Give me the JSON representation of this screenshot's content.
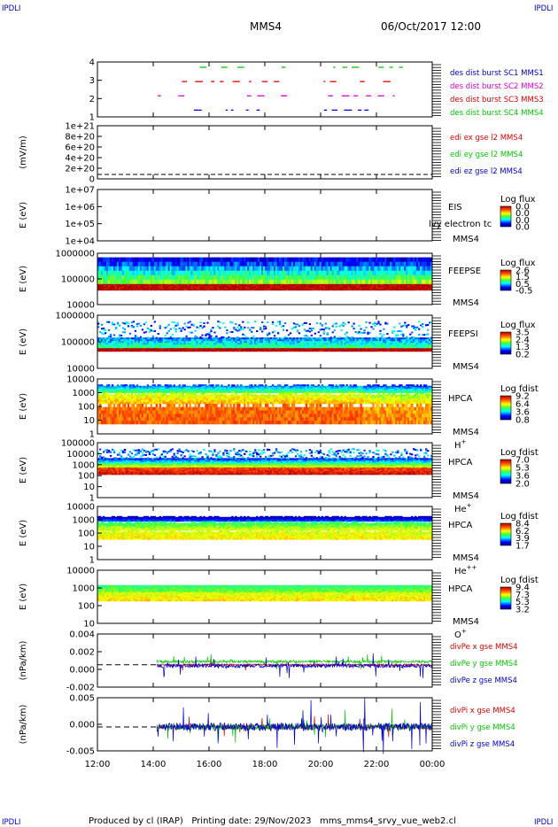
{
  "header": {
    "corner_tl": "IPDLI",
    "corner_tr": "IPDLI",
    "corner_bl": "IPDLI",
    "corner_br": "IPDLI",
    "spacecraft": "MMS4",
    "datetime": "06/Oct/2017 12:00"
  },
  "footer": {
    "text": "Produced by cl (IRAP)   Printing date: 29/Nov/2023   mms_mms4_srvy_vue_web2.cl"
  },
  "colors": {
    "blue": "#0000cc",
    "magenta": "#e000e0",
    "red": "#dd0000",
    "green": "#00cc00"
  },
  "chart_data": [
    {
      "id": "burst",
      "type": "scatter",
      "ylabel": "",
      "yticks": [
        "4",
        "3",
        "2",
        "1"
      ],
      "legend": [
        {
          "text": "des dist burst SC1 MMS1",
          "color": "blue"
        },
        {
          "text": "des dist burst SC2 MMS2",
          "color": "magenta"
        },
        {
          "text": "des dist burst SC3 MMS3",
          "color": "red"
        },
        {
          "text": "des dist burst SC4 MMS4",
          "color": "green"
        }
      ]
    },
    {
      "id": "edi",
      "type": "line",
      "ylabel": "(mV/m)",
      "yticks": [
        "1e+21",
        "8e+20",
        "6e+20",
        "4e+20",
        "2e+20",
        "0"
      ],
      "legend": [
        {
          "text": "edi ex gse l2 MMS4",
          "color": "red"
        },
        {
          "text": "edi ey gse l2 MMS4",
          "color": "green"
        },
        {
          "text": "edi ez gse l2 MMS4",
          "color": "blue"
        }
      ]
    },
    {
      "id": "eis",
      "type": "heatmap",
      "ylabel": "E (eV)",
      "yticks": [
        "1e+07",
        "1e+06",
        "1e+05",
        "1e+04"
      ],
      "instrument": "EIS",
      "spacecraft": "MMS4",
      "overlay": "lvy electron tc",
      "colorbar": {
        "title": "Log flux",
        "ticks": [
          "0.0",
          "0.0",
          "0.0",
          "0.0"
        ]
      }
    },
    {
      "id": "feepse",
      "type": "heatmap",
      "ylabel": "E (eV)",
      "yticks": [
        "1000000",
        "100000",
        "10000"
      ],
      "instrument": "FEEPSE",
      "spacecraft": "MMS4",
      "colorbar": {
        "title": "Log flux",
        "ticks": [
          "2.6",
          "1.5",
          "0.5",
          "-0.5"
        ]
      }
    },
    {
      "id": "feepsi",
      "type": "heatmap",
      "ylabel": "E (eV)",
      "yticks": [
        "1000000",
        "100000",
        "10000"
      ],
      "instrument": "FEEPSI",
      "spacecraft": "MMS4",
      "colorbar": {
        "title": "Log flux",
        "ticks": [
          "3.5",
          "2.4",
          "1.3",
          "0.2"
        ]
      }
    },
    {
      "id": "hpca_h",
      "type": "heatmap",
      "ylabel": "E (eV)",
      "yticks": [
        "10000",
        "1000",
        "100",
        "10",
        "1"
      ],
      "instrument": "HPCA",
      "spacecraft": "MMS4",
      "species": "H",
      "species_sup": "+",
      "colorbar": {
        "title": "Log fdist",
        "ticks": [
          "9.2",
          "6.4",
          "3.6",
          "0.8"
        ]
      }
    },
    {
      "id": "hpca_he",
      "type": "heatmap",
      "ylabel": "E (eV)",
      "yticks": [
        "100000",
        "10000",
        "1000",
        "100",
        "10",
        "1"
      ],
      "instrument": "HPCA",
      "spacecraft": "MMS4",
      "species": "He",
      "species_sup": "+",
      "colorbar": {
        "title": "Log fdist",
        "ticks": [
          "7.0",
          "5.3",
          "3.6",
          "2.0"
        ]
      }
    },
    {
      "id": "hpca_hepp",
      "type": "heatmap",
      "ylabel": "E (eV)",
      "yticks": [
        "10000",
        "1000",
        "100",
        "10",
        "1"
      ],
      "instrument": "HPCA",
      "spacecraft": "MMS4",
      "species": "He",
      "species_sup": "++",
      "colorbar": {
        "title": "Log fdist",
        "ticks": [
          "8.4",
          "6.2",
          "3.9",
          "1.7"
        ]
      }
    },
    {
      "id": "hpca_o",
      "type": "heatmap",
      "ylabel": "E (eV)",
      "yticks": [
        "10000",
        "1000",
        "100",
        "10"
      ],
      "instrument": "HPCA",
      "spacecraft": "MMS4",
      "species": "O",
      "species_sup": "+",
      "colorbar": {
        "title": "Log fdist",
        "ticks": [
          "9.4",
          "7.3",
          "5.3",
          "3.2"
        ]
      }
    },
    {
      "id": "divpe",
      "type": "line",
      "ylabel": "(nPa/km)",
      "yticks": [
        "0.004",
        "0.002",
        "0.000",
        "-0.002"
      ],
      "legend": [
        {
          "text": "divPe x gse MMS4",
          "color": "red"
        },
        {
          "text": "divPe y gse MMS4",
          "color": "green"
        },
        {
          "text": "divPe z gse MMS4",
          "color": "blue"
        }
      ]
    },
    {
      "id": "divpi",
      "type": "line",
      "ylabel": "(nPa/km)",
      "yticks": [
        "0.005",
        "0.000",
        "-0.005"
      ],
      "legend": [
        {
          "text": "divPi x gse MMS4",
          "color": "red"
        },
        {
          "text": "divPi y gse MMS4",
          "color": "green"
        },
        {
          "text": "divPi z gse MMS4",
          "color": "blue"
        }
      ]
    }
  ],
  "xaxis": {
    "ticks": [
      "12:00",
      "14:00",
      "16:00",
      "18:00",
      "20:00",
      "22:00",
      "00:00"
    ]
  }
}
